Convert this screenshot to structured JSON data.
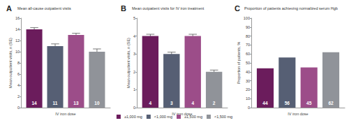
{
  "chart_data": [
    {
      "type": "bar",
      "panel": "A",
      "title": "Mean all-cause outpatient visits",
      "x_label": "IV iron dose",
      "y_label": "Mean outpatient visits, n (SE)",
      "categories": [
        null
      ],
      "series": [
        {
          "name": "≥1,000 mg",
          "color": "#6b1c5c",
          "values": [
            14
          ],
          "errors": [
            0.3
          ]
        },
        {
          "name": "<1,000 mg",
          "color": "#565f74",
          "values": [
            11
          ],
          "errors": [
            0.4
          ]
        },
        {
          "name": "≥1,500 mg",
          "color": "#9c4d89",
          "values": [
            13
          ],
          "errors": [
            0.3
          ]
        },
        {
          "name": "<1,500 mg",
          "color": "#909399",
          "values": [
            10
          ],
          "errors": [
            0.5
          ]
        }
      ],
      "ylim": [
        0,
        16
      ],
      "yticks": [
        0,
        2,
        4,
        6,
        8,
        10,
        12,
        14,
        16
      ],
      "grid": false,
      "data_labels": true,
      "tick_labels": "y"
    },
    {
      "type": "bar",
      "panel": "B",
      "title": "Mean outpatient visits for IV iron treatment",
      "x_label": "IV iron dose",
      "y_label": "Mean outpatient visits, n (SE)",
      "categories": [
        null
      ],
      "series": [
        {
          "name": "≥1,000 mg",
          "color": "#6b1c5c",
          "values": [
            4
          ],
          "errors": [
            0.1
          ]
        },
        {
          "name": "<1,000 mg",
          "color": "#565f74",
          "values": [
            3
          ],
          "errors": [
            0.1
          ]
        },
        {
          "name": "≥1,500 mg",
          "color": "#9c4d89",
          "values": [
            4
          ],
          "errors": [
            0.1
          ]
        },
        {
          "name": "<1,500 mg",
          "color": "#909399",
          "values": [
            2
          ],
          "errors": [
            0.1
          ]
        }
      ],
      "ylim": [
        0,
        5
      ],
      "yticks": [
        0,
        1,
        2,
        3,
        4,
        5
      ],
      "grid": false,
      "data_labels": true,
      "tick_labels": "y",
      "legend": "bottom"
    },
    {
      "type": "bar",
      "panel": "C",
      "title": "Proportion of patients achieving normalized serum Hgb",
      "x_label": "IV iron dose",
      "y_label": "Proportion of patients, %",
      "categories": [
        null
      ],
      "series": [
        {
          "name": "≥1,000 mg",
          "color": "#6b1c5c",
          "values": [
            44
          ]
        },
        {
          "name": "<1,000 mg",
          "color": "#565f74",
          "values": [
            56
          ]
        },
        {
          "name": "≥1,500 mg",
          "color": "#9c4d89",
          "values": [
            45
          ]
        },
        {
          "name": "<1,500 mg",
          "color": "#909399",
          "values": [
            62
          ]
        }
      ],
      "ylim": [
        0,
        100
      ],
      "yticks": [
        0,
        10,
        20,
        30,
        40,
        50,
        60,
        70,
        80,
        90,
        100
      ],
      "grid": false,
      "data_labels": true,
      "tick_labels": "y"
    }
  ]
}
